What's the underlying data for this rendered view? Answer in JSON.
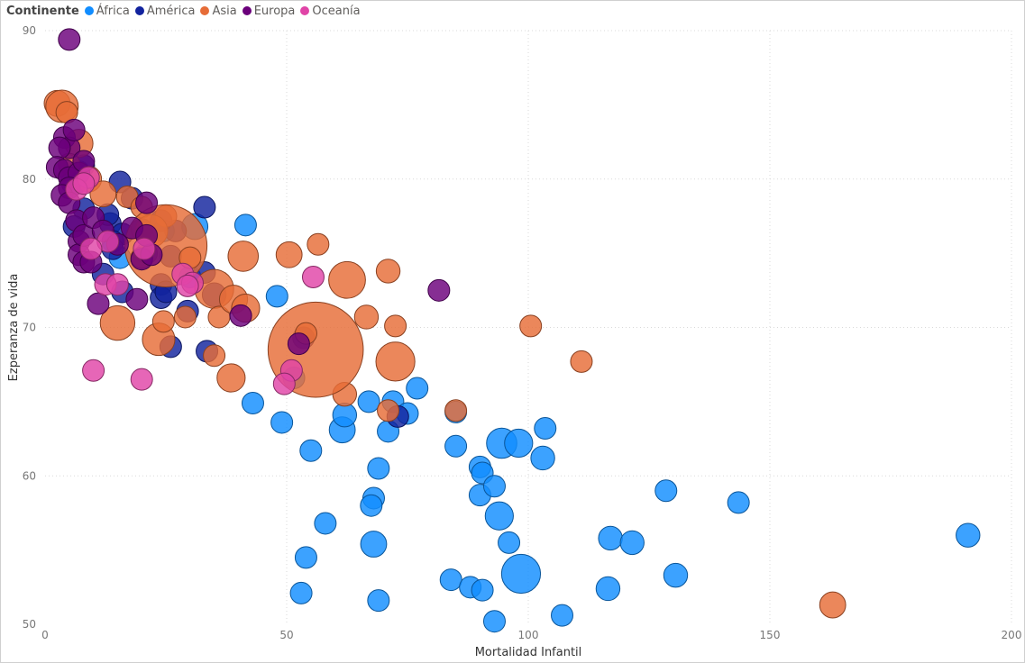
{
  "chart_data": {
    "type": "scatter",
    "xlabel": "Mortalidad Infantil",
    "ylabel": "Ezperanza de vida",
    "xlim": [
      0,
      200
    ],
    "ylim": [
      50,
      90
    ],
    "xticks": [
      0,
      50,
      100,
      150,
      200
    ],
    "yticks": [
      50,
      60,
      70,
      80,
      90
    ],
    "grid": true,
    "legend": {
      "title": "Continente",
      "placement": "top-left",
      "entries": [
        {
          "name": "África",
          "color": "#118DFF"
        },
        {
          "name": "América",
          "color": "#12239E"
        },
        {
          "name": "Asia",
          "color": "#E66C37"
        },
        {
          "name": "Europa",
          "color": "#6B007B"
        },
        {
          "name": "Oceanía",
          "color": "#E044A7"
        }
      ]
    },
    "series": [
      {
        "name": "África",
        "color": "#118DFF",
        "points": [
          [
            41.5,
            76.9,
            1
          ],
          [
            48,
            72.1,
            1
          ],
          [
            43,
            64.9,
            1
          ],
          [
            49,
            63.6,
            1
          ],
          [
            51.5,
            66.6,
            1
          ],
          [
            55,
            61.7,
            1
          ],
          [
            58,
            56.8,
            1
          ],
          [
            54,
            54.5,
            1
          ],
          [
            53,
            52.1,
            1
          ],
          [
            61.5,
            63.1,
            1.2
          ],
          [
            62,
            64.1,
            1.1
          ],
          [
            67,
            65,
            1
          ],
          [
            72,
            65,
            1
          ],
          [
            75,
            64.2,
            1
          ],
          [
            77,
            65.9,
            1
          ],
          [
            71,
            63,
            1
          ],
          [
            69,
            60.5,
            1
          ],
          [
            68,
            58.5,
            1
          ],
          [
            67.5,
            58,
            1
          ],
          [
            68,
            55.4,
            1.2
          ],
          [
            69,
            51.6,
            1
          ],
          [
            84,
            53,
            1
          ],
          [
            88,
            52.5,
            1
          ],
          [
            90.5,
            52.3,
            1
          ],
          [
            93,
            50.2,
            1
          ],
          [
            85,
            62,
            1
          ],
          [
            85,
            64.3,
            1
          ],
          [
            90,
            60.6,
            1
          ],
          [
            90.5,
            60.2,
            1
          ],
          [
            90,
            58.7,
            1
          ],
          [
            93,
            59.3,
            1
          ],
          [
            94,
            57.3,
            1.3
          ],
          [
            96,
            55.5,
            1
          ],
          [
            98.5,
            53.4,
            1.8
          ],
          [
            94.5,
            62.2,
            1.4
          ],
          [
            98,
            62.2,
            1.3
          ],
          [
            103,
            61.2,
            1.1
          ],
          [
            103.5,
            63.2,
            1
          ],
          [
            107,
            50.6,
            1
          ],
          [
            117,
            55.8,
            1.1
          ],
          [
            121.5,
            55.5,
            1.1
          ],
          [
            116.5,
            52.4,
            1.1
          ],
          [
            128.5,
            59,
            1
          ],
          [
            130.5,
            53.3,
            1.1
          ],
          [
            143.5,
            58.2,
            1
          ],
          [
            191,
            56,
            1.1
          ],
          [
            24.5,
            76.5,
            1
          ],
          [
            31,
            76.8,
            1.2
          ],
          [
            15.5,
            74.7,
            1
          ],
          [
            30,
            73.4,
            1
          ]
        ]
      },
      {
        "name": "América",
        "color": "#12239E",
        "points": [
          [
            7,
            80.5,
            1
          ],
          [
            8,
            80.9,
            1
          ],
          [
            6,
            79.8,
            1.2
          ],
          [
            8,
            78,
            1
          ],
          [
            6,
            76.8,
            1
          ],
          [
            15.5,
            79.8,
            1
          ],
          [
            18,
            78.7,
            1
          ],
          [
            27,
            76.5,
            1
          ],
          [
            33,
            78.1,
            1
          ],
          [
            13.5,
            77,
            1
          ],
          [
            13,
            77.6,
            1
          ],
          [
            16,
            76.3,
            1
          ],
          [
            20,
            76.6,
            1
          ],
          [
            24,
            77.2,
            1
          ],
          [
            14,
            75.8,
            1
          ],
          [
            14,
            75.3,
            1
          ],
          [
            16,
            72.4,
            1
          ],
          [
            24,
            72.9,
            1
          ],
          [
            24,
            72,
            1
          ],
          [
            25,
            72.4,
            1
          ],
          [
            29.5,
            71.1,
            1
          ],
          [
            33,
            73.7,
            1
          ],
          [
            35,
            72.2,
            1.1
          ],
          [
            26,
            68.7,
            1
          ],
          [
            33.5,
            68.4,
            1
          ],
          [
            53.5,
            69.3,
            1
          ],
          [
            73,
            64,
            1
          ],
          [
            12,
            73.6,
            1
          ],
          [
            21,
            75,
            1
          ],
          [
            26,
            74.8,
            1
          ]
        ]
      },
      {
        "name": "Asia",
        "color": "#E66C37",
        "points": [
          [
            2.5,
            85.1,
            1.2
          ],
          [
            3.5,
            84.9,
            1.5
          ],
          [
            4.5,
            84.5,
            1
          ],
          [
            7,
            82.4,
            1.3
          ],
          [
            5,
            81,
            1
          ],
          [
            9,
            80,
            1.2
          ],
          [
            12,
            79,
            1.2
          ],
          [
            17,
            78.8,
            1
          ],
          [
            20,
            78.1,
            1
          ],
          [
            25,
            77.5,
            1
          ],
          [
            22,
            76.5,
            1.5
          ],
          [
            25,
            75.5,
            3.8
          ],
          [
            30,
            74.7,
            1
          ],
          [
            35,
            72.6,
            1.8
          ],
          [
            36,
            70.7,
            1
          ],
          [
            39,
            71.9,
            1.3
          ],
          [
            41.5,
            71.3,
            1.3
          ],
          [
            41,
            74.8,
            1.4
          ],
          [
            50.5,
            74.9,
            1.2
          ],
          [
            56.5,
            75.6,
            1
          ],
          [
            62.5,
            73.2,
            1.7
          ],
          [
            71,
            73.8,
            1.1
          ],
          [
            66.5,
            70.7,
            1.1
          ],
          [
            72.5,
            70.1,
            1
          ],
          [
            72.5,
            67.7,
            1.8
          ],
          [
            62,
            65.5,
            1.1
          ],
          [
            71,
            64.4,
            1
          ],
          [
            56,
            68.5,
            4.4
          ],
          [
            54,
            69.6,
            1
          ],
          [
            38.5,
            66.6,
            1.3
          ],
          [
            35,
            68.1,
            1
          ],
          [
            23.5,
            69.2,
            1.5
          ],
          [
            24.5,
            70.4,
            1
          ],
          [
            15,
            70.3,
            1.6
          ],
          [
            100.5,
            70.1,
            1
          ],
          [
            111,
            67.7,
            1
          ],
          [
            85,
            64.4,
            1
          ],
          [
            163,
            51.3,
            1.2
          ],
          [
            29,
            70.7,
            1
          ],
          [
            20,
            74.7,
            1
          ]
        ]
      },
      {
        "name": "Europa",
        "color": "#6B007B",
        "points": [
          [
            5,
            89.4,
            1
          ],
          [
            4,
            82.8,
            1
          ],
          [
            5,
            82.1,
            1
          ],
          [
            3,
            82.1,
            1
          ],
          [
            6,
            83.3,
            1
          ],
          [
            2.5,
            80.8,
            1
          ],
          [
            4,
            80.6,
            1
          ],
          [
            5,
            80.1,
            1
          ],
          [
            7,
            80.4,
            1
          ],
          [
            8,
            81.2,
            1
          ],
          [
            5,
            79.4,
            1
          ],
          [
            3.5,
            78.9,
            1
          ],
          [
            5,
            78.4,
            1
          ],
          [
            6.5,
            77.2,
            1
          ],
          [
            7,
            75.8,
            1
          ],
          [
            7,
            74.9,
            1
          ],
          [
            8,
            74.4,
            1
          ],
          [
            9.5,
            74.4,
            1
          ],
          [
            8,
            76.2,
            1
          ],
          [
            10,
            77.4,
            1
          ],
          [
            12,
            76.5,
            1
          ],
          [
            15,
            75.6,
            1
          ],
          [
            20,
            74.6,
            1
          ],
          [
            22,
            74.9,
            1
          ],
          [
            18,
            76.7,
            1
          ],
          [
            21,
            76.2,
            1
          ],
          [
            21,
            78.4,
            1
          ],
          [
            19,
            71.9,
            1
          ],
          [
            11,
            71.6,
            1
          ],
          [
            40.5,
            70.8,
            1
          ],
          [
            81.5,
            72.5,
            1
          ],
          [
            52.5,
            68.9,
            1
          ]
        ]
      },
      {
        "name": "Oceanía",
        "color": "#E044A7",
        "points": [
          [
            9,
            80.1,
            1
          ],
          [
            6.5,
            79.3,
            1
          ],
          [
            8,
            79.7,
            1
          ],
          [
            13,
            75.8,
            1
          ],
          [
            9.5,
            75.3,
            1
          ],
          [
            12.5,
            72.9,
            1
          ],
          [
            15,
            72.9,
            1
          ],
          [
            20.5,
            75.3,
            1
          ],
          [
            28.5,
            73.6,
            1
          ],
          [
            30.5,
            73,
            1
          ],
          [
            29.5,
            72.8,
            1
          ],
          [
            55.5,
            73.4,
            1
          ],
          [
            51,
            67.1,
            1
          ],
          [
            49.5,
            66.2,
            1
          ],
          [
            10,
            67.1,
            1
          ],
          [
            20,
            66.5,
            1
          ]
        ]
      }
    ]
  }
}
